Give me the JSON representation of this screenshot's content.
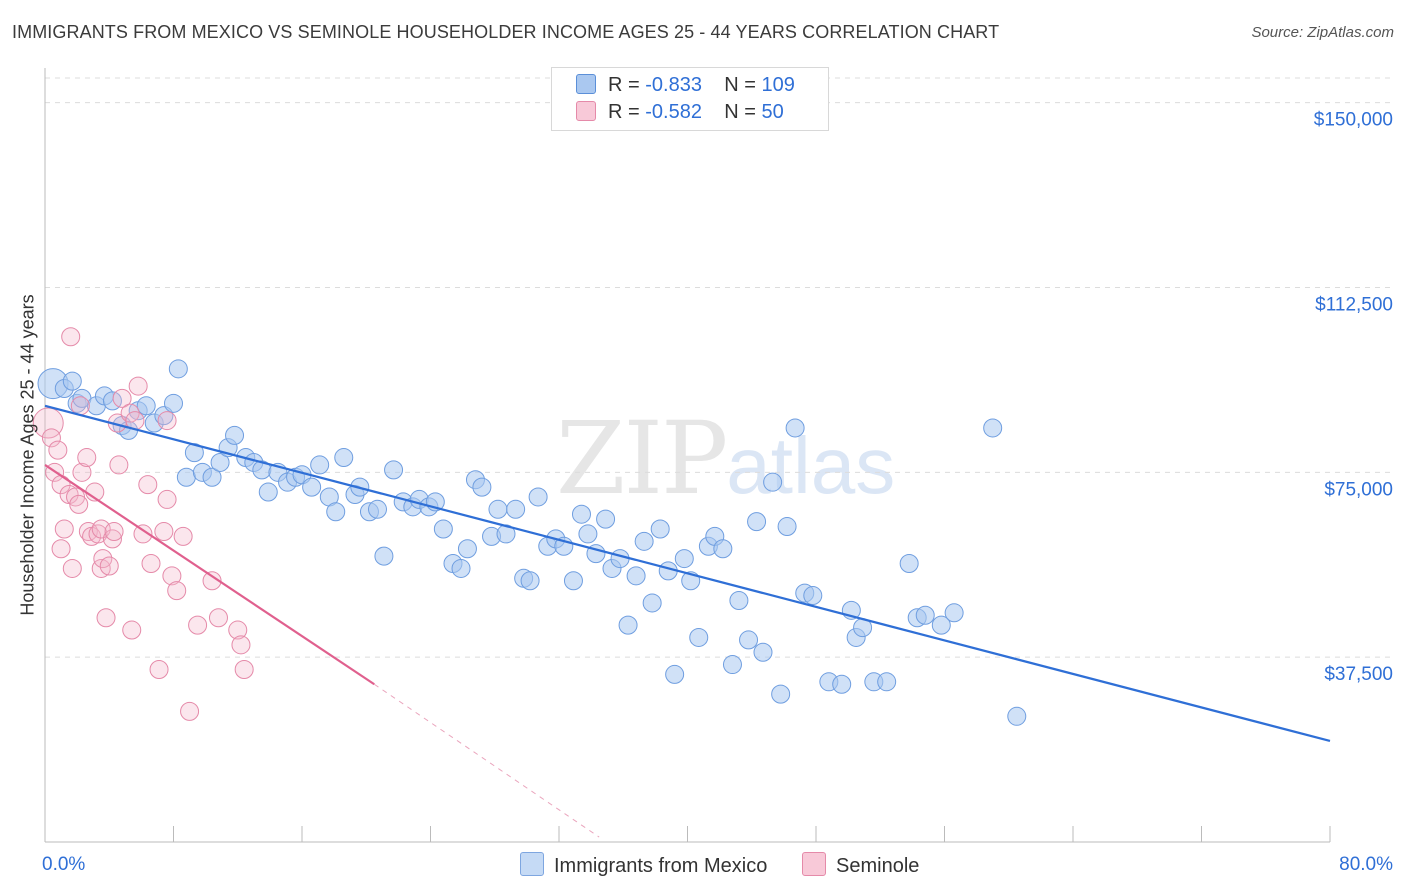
{
  "title": "IMMIGRANTS FROM MEXICO VS SEMINOLE HOUSEHOLDER INCOME AGES 25 - 44 YEARS CORRELATION CHART",
  "source": "Source: ZipAtlas.com",
  "watermark": {
    "zip": "ZIP",
    "atlas": "atlas"
  },
  "colors": {
    "blue": "#2f6fd6",
    "blue_fill": "#aac8f0",
    "pink": "#e0608e",
    "pink_fill": "#f4b6ca",
    "grid": "#dcdcdc"
  },
  "legend_top": [
    {
      "r_label": "R =",
      "r_value": "-0.833",
      "n_label": "N =",
      "n_value": "109"
    },
    {
      "r_label": "R =",
      "r_value": "-0.582",
      "n_label": "N =",
      "n_value": "50"
    }
  ],
  "legend_bottom": [
    "Immigrants from Mexico",
    "Seminole"
  ],
  "chart_data": {
    "type": "scatter",
    "title": "IMMIGRANTS FROM MEXICO VS SEMINOLE HOUSEHOLDER INCOME AGES 25 - 44 YEARS CORRELATION CHART",
    "ylabel": "Householder Income Ages 25 - 44 years",
    "xlabel": "",
    "xlim": [
      0,
      80
    ],
    "ylim": [
      0,
      155000
    ],
    "x_tick_labels": [
      "0.0%",
      "80.0%"
    ],
    "y_ticks": [
      37500,
      75000,
      112500,
      150000
    ],
    "y_tick_labels": [
      "$37,500",
      "$75,000",
      "$112,500",
      "$150,000"
    ],
    "grid": true,
    "legend_placement": "top-center",
    "series": [
      {
        "name": "Immigrants from Mexico",
        "color": "#2f6fd6",
        "r": -0.833,
        "n": 109,
        "trend": {
          "x": [
            0,
            80
          ],
          "y": [
            88500,
            20500
          ]
        },
        "points": [
          [
            0.5,
            93000
          ],
          [
            1.2,
            92000
          ],
          [
            1.7,
            93500
          ],
          [
            2.0,
            89000
          ],
          [
            2.3,
            90000
          ],
          [
            3.2,
            88500
          ],
          [
            3.7,
            90500
          ],
          [
            4.2,
            89500
          ],
          [
            4.8,
            84500
          ],
          [
            5.2,
            83500
          ],
          [
            5.8,
            87500
          ],
          [
            6.3,
            88500
          ],
          [
            6.8,
            85000
          ],
          [
            7.4,
            86500
          ],
          [
            8.0,
            89000
          ],
          [
            8.3,
            96000
          ],
          [
            8.8,
            74000
          ],
          [
            9.3,
            79000
          ],
          [
            9.8,
            75000
          ],
          [
            10.4,
            74000
          ],
          [
            10.9,
            77000
          ],
          [
            11.4,
            80000
          ],
          [
            11.8,
            82500
          ],
          [
            12.5,
            78000
          ],
          [
            13.0,
            77000
          ],
          [
            13.5,
            75500
          ],
          [
            13.9,
            71000
          ],
          [
            14.5,
            75000
          ],
          [
            15.1,
            73000
          ],
          [
            15.6,
            74000
          ],
          [
            16.0,
            74500
          ],
          [
            16.6,
            72000
          ],
          [
            17.1,
            76500
          ],
          [
            17.7,
            70000
          ],
          [
            18.1,
            67000
          ],
          [
            18.6,
            78000
          ],
          [
            19.3,
            70500
          ],
          [
            19.6,
            72000
          ],
          [
            20.2,
            67000
          ],
          [
            20.7,
            67500
          ],
          [
            21.1,
            58000
          ],
          [
            21.7,
            75500
          ],
          [
            22.3,
            69000
          ],
          [
            22.9,
            68000
          ],
          [
            23.3,
            69500
          ],
          [
            23.9,
            68000
          ],
          [
            24.3,
            69000
          ],
          [
            24.8,
            63500
          ],
          [
            25.4,
            56500
          ],
          [
            25.9,
            55500
          ],
          [
            26.3,
            59500
          ],
          [
            26.8,
            73500
          ],
          [
            27.2,
            72000
          ],
          [
            27.8,
            62000
          ],
          [
            28.2,
            67500
          ],
          [
            28.7,
            62500
          ],
          [
            29.3,
            67500
          ],
          [
            29.8,
            53500
          ],
          [
            30.2,
            53000
          ],
          [
            30.7,
            70000
          ],
          [
            31.3,
            60000
          ],
          [
            31.8,
            61500
          ],
          [
            32.3,
            60000
          ],
          [
            32.9,
            53000
          ],
          [
            33.4,
            66500
          ],
          [
            33.8,
            62500
          ],
          [
            34.3,
            58500
          ],
          [
            34.9,
            65500
          ],
          [
            35.3,
            55500
          ],
          [
            35.8,
            57500
          ],
          [
            36.3,
            44000
          ],
          [
            36.8,
            54000
          ],
          [
            37.3,
            61000
          ],
          [
            37.8,
            48500
          ],
          [
            38.3,
            63500
          ],
          [
            38.8,
            55000
          ],
          [
            39.2,
            34000
          ],
          [
            39.8,
            57500
          ],
          [
            40.2,
            53000
          ],
          [
            40.7,
            41500
          ],
          [
            41.3,
            60000
          ],
          [
            41.7,
            62000
          ],
          [
            42.2,
            59500
          ],
          [
            42.8,
            36000
          ],
          [
            43.2,
            49000
          ],
          [
            43.8,
            41000
          ],
          [
            44.3,
            65000
          ],
          [
            44.7,
            38500
          ],
          [
            45.3,
            73000
          ],
          [
            45.8,
            30000
          ],
          [
            46.2,
            64000
          ],
          [
            46.7,
            84000
          ],
          [
            47.3,
            50500
          ],
          [
            47.8,
            50000
          ],
          [
            48.8,
            32500
          ],
          [
            49.6,
            32000
          ],
          [
            50.2,
            47000
          ],
          [
            50.5,
            41500
          ],
          [
            50.9,
            43500
          ],
          [
            51.6,
            32500
          ],
          [
            52.4,
            32500
          ],
          [
            53.8,
            56500
          ],
          [
            54.3,
            45500
          ],
          [
            54.8,
            46000
          ],
          [
            55.8,
            44000
          ],
          [
            56.6,
            46500
          ],
          [
            59.0,
            84000
          ],
          [
            60.5,
            25500
          ]
        ]
      },
      {
        "name": "Seminole",
        "color": "#e0608e",
        "r": -0.582,
        "n": 50,
        "trend": {
          "x": [
            0,
            20.5
          ],
          "y": [
            76500,
            32000
          ]
        },
        "trend_dashed": {
          "x": [
            20.5,
            34.5
          ],
          "y": [
            32000,
            1000
          ]
        },
        "points": [
          [
            0.2,
            85000
          ],
          [
            0.4,
            82000
          ],
          [
            0.6,
            75000
          ],
          [
            0.8,
            79500
          ],
          [
            1.0,
            72500
          ],
          [
            1.2,
            63500
          ],
          [
            1.0,
            59500
          ],
          [
            1.5,
            70500
          ],
          [
            1.7,
            55500
          ],
          [
            1.9,
            70000
          ],
          [
            2.1,
            68500
          ],
          [
            2.3,
            75000
          ],
          [
            2.2,
            88500
          ],
          [
            2.6,
            78000
          ],
          [
            2.7,
            63000
          ],
          [
            2.9,
            62000
          ],
          [
            3.1,
            71000
          ],
          [
            3.3,
            62500
          ],
          [
            3.5,
            63500
          ],
          [
            3.5,
            55500
          ],
          [
            3.6,
            57500
          ],
          [
            3.8,
            45500
          ],
          [
            4.0,
            56000
          ],
          [
            4.2,
            61500
          ],
          [
            4.3,
            63000
          ],
          [
            4.5,
            85000
          ],
          [
            4.6,
            76500
          ],
          [
            4.8,
            90000
          ],
          [
            5.3,
            87000
          ],
          [
            5.4,
            43000
          ],
          [
            5.6,
            85500
          ],
          [
            5.8,
            92500
          ],
          [
            6.1,
            62500
          ],
          [
            6.4,
            72500
          ],
          [
            6.6,
            56500
          ],
          [
            7.1,
            35000
          ],
          [
            7.4,
            63000
          ],
          [
            7.6,
            85500
          ],
          [
            7.6,
            69500
          ],
          [
            7.9,
            54000
          ],
          [
            8.2,
            51000
          ],
          [
            8.6,
            62000
          ],
          [
            9.0,
            26500
          ],
          [
            9.5,
            44000
          ],
          [
            10.4,
            53000
          ],
          [
            10.8,
            45500
          ],
          [
            12.0,
            43000
          ],
          [
            12.2,
            40000
          ],
          [
            12.4,
            35000
          ],
          [
            1.6,
            102500
          ]
        ]
      }
    ]
  }
}
